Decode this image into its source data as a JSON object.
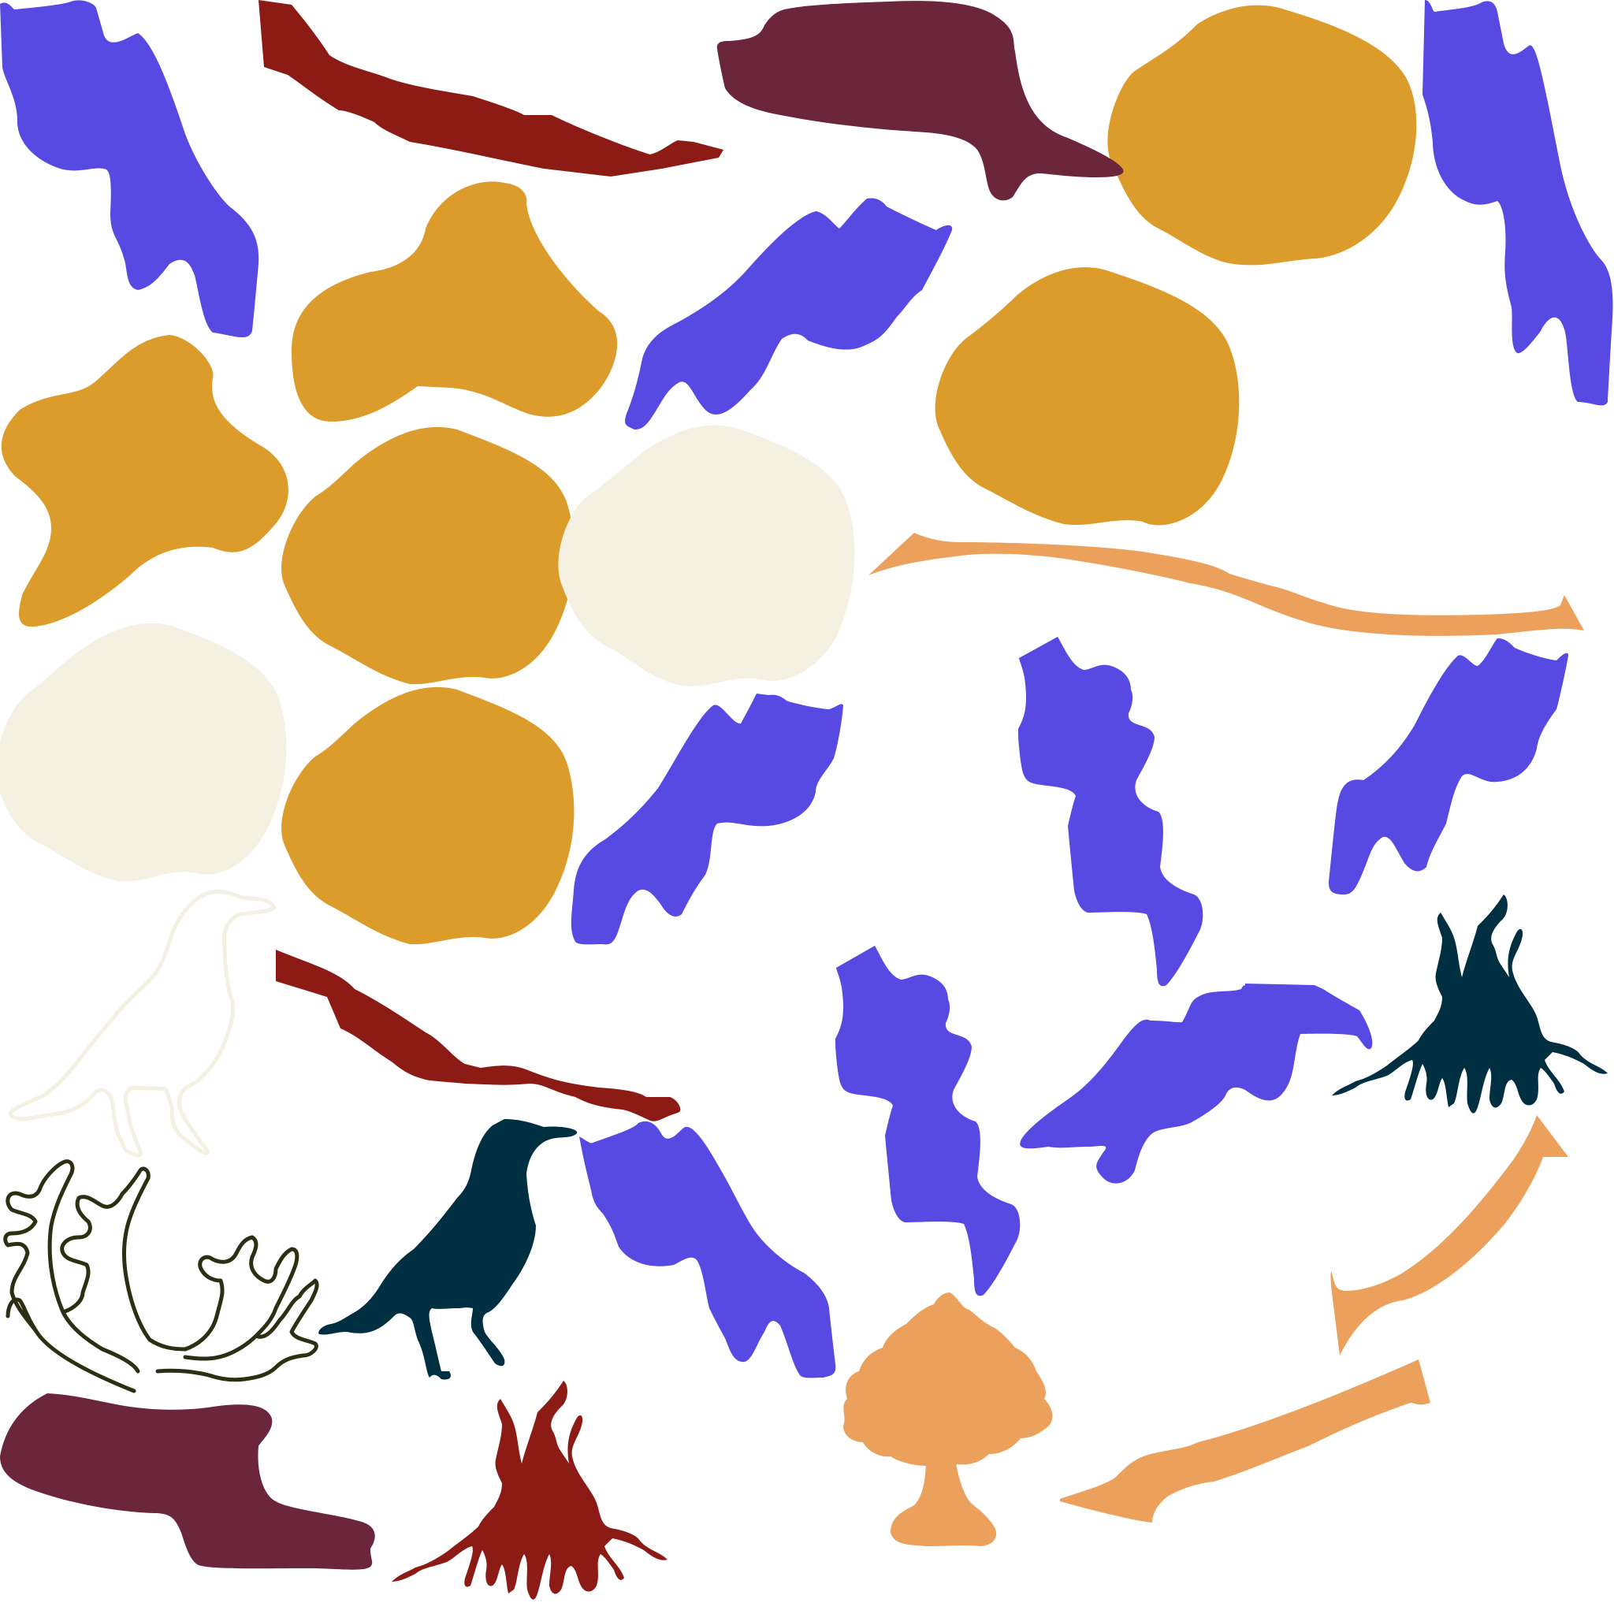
{
  "palette": {
    "background": "#ffffff",
    "blue": "#574ae2",
    "gold": "#dc9c2c",
    "cream": "#f4f1e3",
    "maroon": "#6b263b",
    "red": "#8c1b16",
    "peach": "#eba15c",
    "dark_teal": "#002f41",
    "olive": "#2e2e12"
  },
  "shapes": [
    {
      "kind": "blue-blob",
      "color": "blue"
    },
    {
      "kind": "gold-blob",
      "color": "gold"
    },
    {
      "kind": "cream-blob",
      "color": "cream"
    },
    {
      "kind": "maroon-blob",
      "color": "maroon"
    },
    {
      "kind": "branch",
      "color": "red"
    },
    {
      "kind": "branch",
      "color": "peach"
    },
    {
      "kind": "bird",
      "color": "dark_teal"
    },
    {
      "kind": "bird-outline",
      "color": "cream"
    },
    {
      "kind": "tree-roots",
      "color": "dark_teal"
    },
    {
      "kind": "tree-roots",
      "color": "red"
    },
    {
      "kind": "tree",
      "color": "peach"
    },
    {
      "kind": "antlers",
      "color": "olive"
    }
  ]
}
